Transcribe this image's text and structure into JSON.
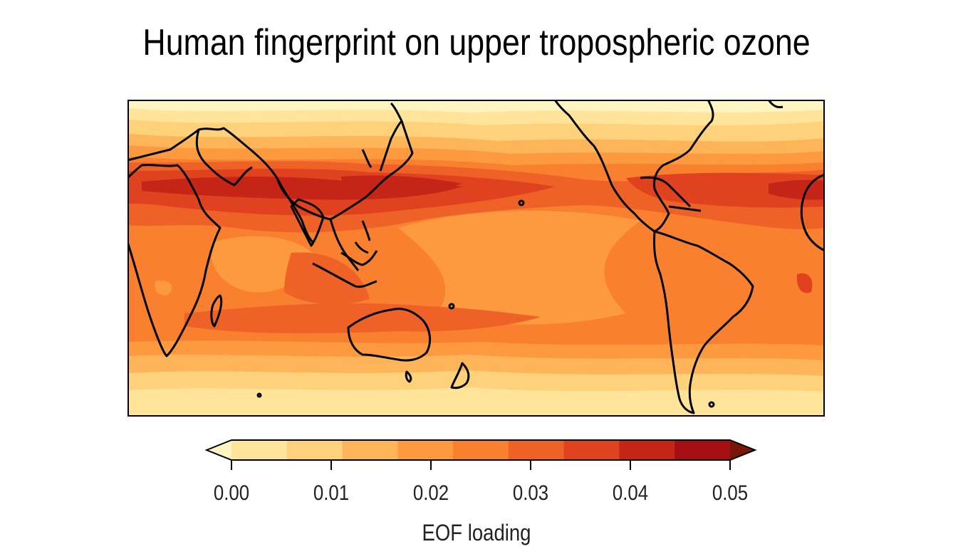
{
  "title": "Human fingerprint on upper tropospheric ozone",
  "colorbar": {
    "label": "EOF loading",
    "tick_labels": [
      "0.00",
      "0.01",
      "0.02",
      "0.03",
      "0.04",
      "0.05"
    ],
    "boundaries": [
      0.0,
      0.005,
      0.01,
      0.015,
      0.02,
      0.025,
      0.03,
      0.035,
      0.04,
      0.045,
      0.05
    ],
    "colors": [
      "#fff5c2",
      "#ffe49a",
      "#fed27b",
      "#feb55a",
      "#fd9a3f",
      "#f8802e",
      "#ef6227",
      "#e0411f",
      "#c72418",
      "#a40f16",
      "#7a1608"
    ],
    "extend": "both"
  },
  "map": {
    "projection": "equirectangular",
    "lon_range": [
      -15,
      360
    ],
    "lat_range": [
      -60,
      75
    ],
    "coastlines": true
  }
}
